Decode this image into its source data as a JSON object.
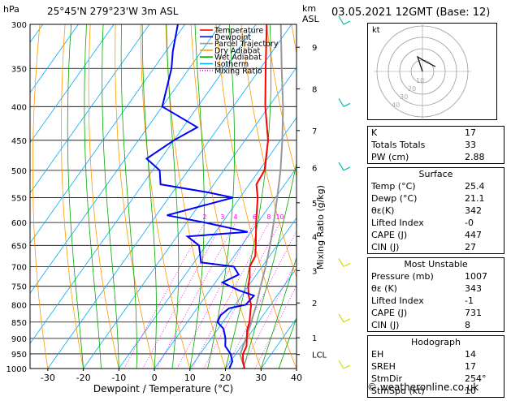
{
  "header": {
    "pressure_unit": "hPa",
    "location": "25°45'N  279°23'W  3m  ASL",
    "height_unit": "km",
    "height_ref": "ASL",
    "datetime": "03.05.2021  12GMT  (Base: 12)"
  },
  "colors": {
    "temperature": "#ff0000",
    "dewpoint": "#0000ff",
    "parcel": "#999999",
    "dry_adiabat": "#ff9900",
    "wet_adiabat": "#00aa00",
    "isotherm": "#00aaff",
    "mixing_ratio": "#ff00ff",
    "wind": "#ccdd00"
  },
  "chart_data": {
    "type": "skew-t",
    "xlabel": "Dewpoint / Temperature (°C)",
    "ylabel_right": "Mixing Ratio (g/kg)",
    "xlim": [
      -35,
      40
    ],
    "x_ticks": [
      -30,
      -20,
      -10,
      0,
      10,
      20,
      30,
      40
    ],
    "pressure_levels": [
      300,
      350,
      400,
      450,
      500,
      550,
      600,
      650,
      700,
      750,
      800,
      850,
      900,
      950,
      1000
    ],
    "height_km_labels": [
      {
        "p": 325,
        "label": "9"
      },
      {
        "p": 376,
        "label": "8"
      },
      {
        "p": 435,
        "label": "7"
      },
      {
        "p": 495,
        "label": "6"
      },
      {
        "p": 560,
        "label": "5"
      },
      {
        "p": 630,
        "label": "4"
      },
      {
        "p": 710,
        "label": "3"
      },
      {
        "p": 795,
        "label": "2"
      },
      {
        "p": 898,
        "label": "1"
      },
      {
        "p": 952,
        "label": "LCL"
      }
    ],
    "mixing_ratio_labels": [
      "2",
      "3",
      "4",
      "6",
      "8",
      "10",
      "15",
      "20",
      "25"
    ],
    "mixing_ratio_values": [
      2,
      3,
      4,
      6,
      8,
      10,
      15,
      20,
      25
    ],
    "legend": [
      "Temperature",
      "Dewpoint",
      "Parcel Trajectory",
      "Dry Adiabat",
      "Wet Adiabat",
      "Isotherm",
      "Mixing Ratio"
    ],
    "temperature": [
      {
        "p": 1000,
        "t": 25.4
      },
      {
        "p": 975,
        "t": 23.5
      },
      {
        "p": 950,
        "t": 22.0
      },
      {
        "p": 925,
        "t": 21.5
      },
      {
        "p": 900,
        "t": 20.0
      },
      {
        "p": 875,
        "t": 18.5
      },
      {
        "p": 850,
        "t": 17.5
      },
      {
        "p": 825,
        "t": 16.0
      },
      {
        "p": 800,
        "t": 14.5
      },
      {
        "p": 775,
        "t": 12.0
      },
      {
        "p": 750,
        "t": 10.0
      },
      {
        "p": 725,
        "t": 8.5
      },
      {
        "p": 700,
        "t": 6.5
      },
      {
        "p": 675,
        "t": 6.0
      },
      {
        "p": 650,
        "t": 4.0
      },
      {
        "p": 600,
        "t": -0.5
      },
      {
        "p": 550,
        "t": -5.0
      },
      {
        "p": 525,
        "t": -8.0
      },
      {
        "p": 500,
        "t": -8.5
      },
      {
        "p": 450,
        "t": -13.5
      },
      {
        "p": 400,
        "t": -21.0
      },
      {
        "p": 350,
        "t": -28.5
      },
      {
        "p": 300,
        "t": -37.0
      }
    ],
    "dewpoint": [
      {
        "p": 1000,
        "t": 21.1
      },
      {
        "p": 975,
        "t": 20.5
      },
      {
        "p": 950,
        "t": 18.5
      },
      {
        "p": 925,
        "t": 15.5
      },
      {
        "p": 900,
        "t": 14.0
      },
      {
        "p": 870,
        "t": 11.5
      },
      {
        "p": 850,
        "t": 8.5
      },
      {
        "p": 830,
        "t": 8.0
      },
      {
        "p": 810,
        "t": 9.0
      },
      {
        "p": 800,
        "t": 13.0
      },
      {
        "p": 775,
        "t": 13.5
      },
      {
        "p": 760,
        "t": 8.0
      },
      {
        "p": 740,
        "t": 2.0
      },
      {
        "p": 720,
        "t": 5.0
      },
      {
        "p": 700,
        "t": 2.0
      },
      {
        "p": 690,
        "t": -8.0
      },
      {
        "p": 650,
        "t": -12.0
      },
      {
        "p": 630,
        "t": -17.0
      },
      {
        "p": 620,
        "t": -1.0
      },
      {
        "p": 600,
        "t": -15.0
      },
      {
        "p": 585,
        "t": -27.0
      },
      {
        "p": 550,
        "t": -12.0
      },
      {
        "p": 540,
        "t": -20.0
      },
      {
        "p": 525,
        "t": -35.0
      },
      {
        "p": 500,
        "t": -38.0
      },
      {
        "p": 480,
        "t": -44.0
      },
      {
        "p": 450,
        "t": -40.0
      },
      {
        "p": 430,
        "t": -36.0
      },
      {
        "p": 400,
        "t": -50.0
      },
      {
        "p": 350,
        "t": -55.0
      },
      {
        "p": 330,
        "t": -58.0
      },
      {
        "p": 300,
        "t": -62.0
      }
    ],
    "parcel": [
      {
        "p": 1000,
        "t": 25.4
      },
      {
        "p": 952,
        "t": 21.3
      },
      {
        "p": 900,
        "t": 19.8
      },
      {
        "p": 850,
        "t": 18.0
      },
      {
        "p": 800,
        "t": 16.0
      },
      {
        "p": 750,
        "t": 13.5
      },
      {
        "p": 700,
        "t": 11.0
      },
      {
        "p": 650,
        "t": 8.0
      },
      {
        "p": 600,
        "t": 4.5
      },
      {
        "p": 550,
        "t": 0.5
      },
      {
        "p": 500,
        "t": -4.0
      },
      {
        "p": 450,
        "t": -9.5
      },
      {
        "p": 400,
        "t": -16.0
      },
      {
        "p": 350,
        "t": -24.0
      },
      {
        "p": 300,
        "t": -33.0
      }
    ],
    "wind_levels": [
      300,
      400,
      500,
      700,
      850,
      1000
    ]
  },
  "hodograph": {
    "label": "kt",
    "ring_labels": [
      "10",
      "20",
      "30",
      "40"
    ]
  },
  "stats": {
    "general": [
      {
        "label": "K",
        "value": "17"
      },
      {
        "label": "Totals Totals",
        "value": "33"
      },
      {
        "label": "PW (cm)",
        "value": "2.88"
      }
    ],
    "surface": {
      "title": "Surface",
      "rows": [
        {
          "label": "Temp (°C)",
          "value": "25.4"
        },
        {
          "label": "Dewp (°C)",
          "value": "21.1"
        },
        {
          "label": "θε(K)",
          "value": "342"
        },
        {
          "label": "Lifted Index",
          "value": "-0"
        },
        {
          "label": "CAPE (J)",
          "value": "447"
        },
        {
          "label": "CIN (J)",
          "value": "27"
        }
      ]
    },
    "most_unstable": {
      "title": "Most Unstable",
      "rows": [
        {
          "label": "Pressure (mb)",
          "value": "1007"
        },
        {
          "label": "θε (K)",
          "value": "343"
        },
        {
          "label": "Lifted Index",
          "value": "-1"
        },
        {
          "label": "CAPE (J)",
          "value": "731"
        },
        {
          "label": "CIN (J)",
          "value": "8"
        }
      ]
    },
    "hodograph": {
      "title": "Hodograph",
      "rows": [
        {
          "label": "EH",
          "value": "14"
        },
        {
          "label": "SREH",
          "value": "17"
        },
        {
          "label": "StmDir",
          "value": "254°"
        },
        {
          "label": "StmSpd (kt)",
          "value": "10"
        }
      ]
    }
  },
  "footer": "© weatheronline.co.uk"
}
